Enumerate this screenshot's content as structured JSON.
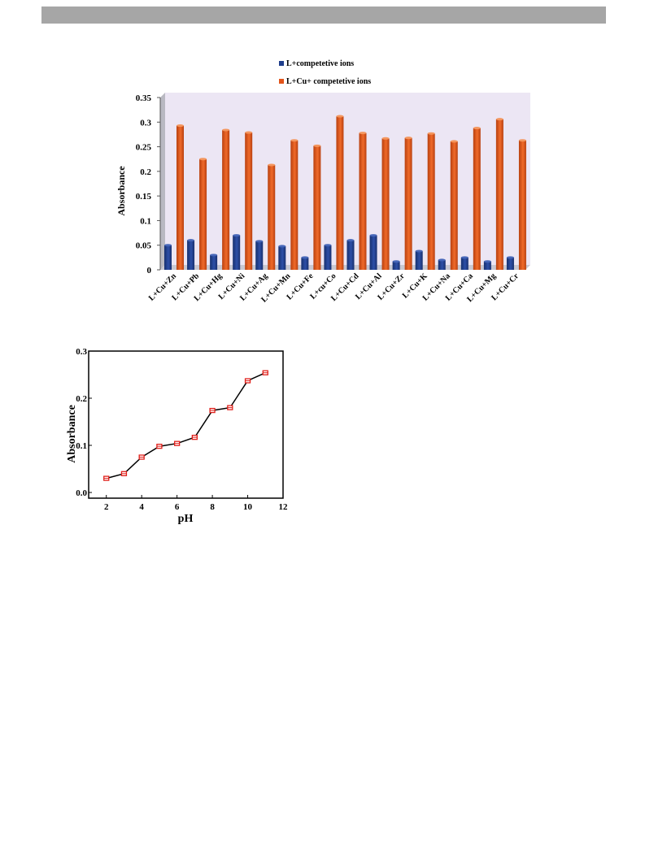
{
  "page": {
    "header_color": "#a6a6a6"
  },
  "chart_data": [
    {
      "type": "bar",
      "title": "",
      "xlabel": "",
      "ylabel": "Absorbance",
      "ylim": [
        0,
        0.35
      ],
      "yticks": [
        "0",
        "0.05",
        "0.1",
        "0.15",
        "0.2",
        "0.25",
        "0.3",
        "0.35"
      ],
      "ytick_values": [
        0,
        0.05,
        0.1,
        0.15,
        0.2,
        0.25,
        0.3,
        0.35
      ],
      "legend_position": "top",
      "plot_background": "#ece6f4",
      "categories": [
        "L+Cu+Zn",
        "L+Cu+Pb",
        "L+Cu+Hg",
        "L+Cu+Ni",
        "L+Cu+Ag",
        "L+Cu+Mn",
        "L+Cu+Fe",
        "L+cu+Co",
        "L+Cu+Cd",
        "L+Cu+Al",
        "L+Cu+Zr",
        "L+Cu+K",
        "L+Cu+Na",
        "L+Cu+Ca",
        "L+Cu+Mg",
        "L+Cu+Cr"
      ],
      "series": [
        {
          "name": "L+competetive ions",
          "color": "#1f3e8c",
          "values": [
            0.05,
            0.06,
            0.03,
            0.07,
            0.058,
            0.048,
            0.025,
            0.05,
            0.06,
            0.07,
            0.017,
            0.038,
            0.02,
            0.025,
            0.017,
            0.025
          ]
        },
        {
          "name": "L+Cu+ competetive ions",
          "color": "#e2541b",
          "values": [
            0.293,
            0.225,
            0.284,
            0.279,
            0.213,
            0.263,
            0.252,
            0.312,
            0.278,
            0.267,
            0.268,
            0.277,
            0.261,
            0.288,
            0.306,
            0.263
          ]
        }
      ]
    },
    {
      "type": "line",
      "title": "",
      "xlabel": "pH",
      "ylabel": "Absorbance",
      "xlim": [
        1,
        12
      ],
      "ylim": [
        0,
        0.3
      ],
      "xticks": [
        "2",
        "4",
        "6",
        "8",
        "10",
        "12"
      ],
      "xtick_values": [
        2,
        4,
        6,
        8,
        10,
        12
      ],
      "yticks": [
        "0.0",
        "0.1",
        "0.2",
        "0.3"
      ],
      "ytick_values": [
        0,
        0.1,
        0.2,
        0.3
      ],
      "line_color": "#000000",
      "marker_color": "#e0201b",
      "x": [
        2,
        3,
        4,
        5,
        6,
        7,
        8,
        9,
        10,
        11
      ],
      "y": [
        0.03,
        0.04,
        0.075,
        0.098,
        0.104,
        0.117,
        0.174,
        0.18,
        0.237,
        0.254
      ]
    }
  ]
}
